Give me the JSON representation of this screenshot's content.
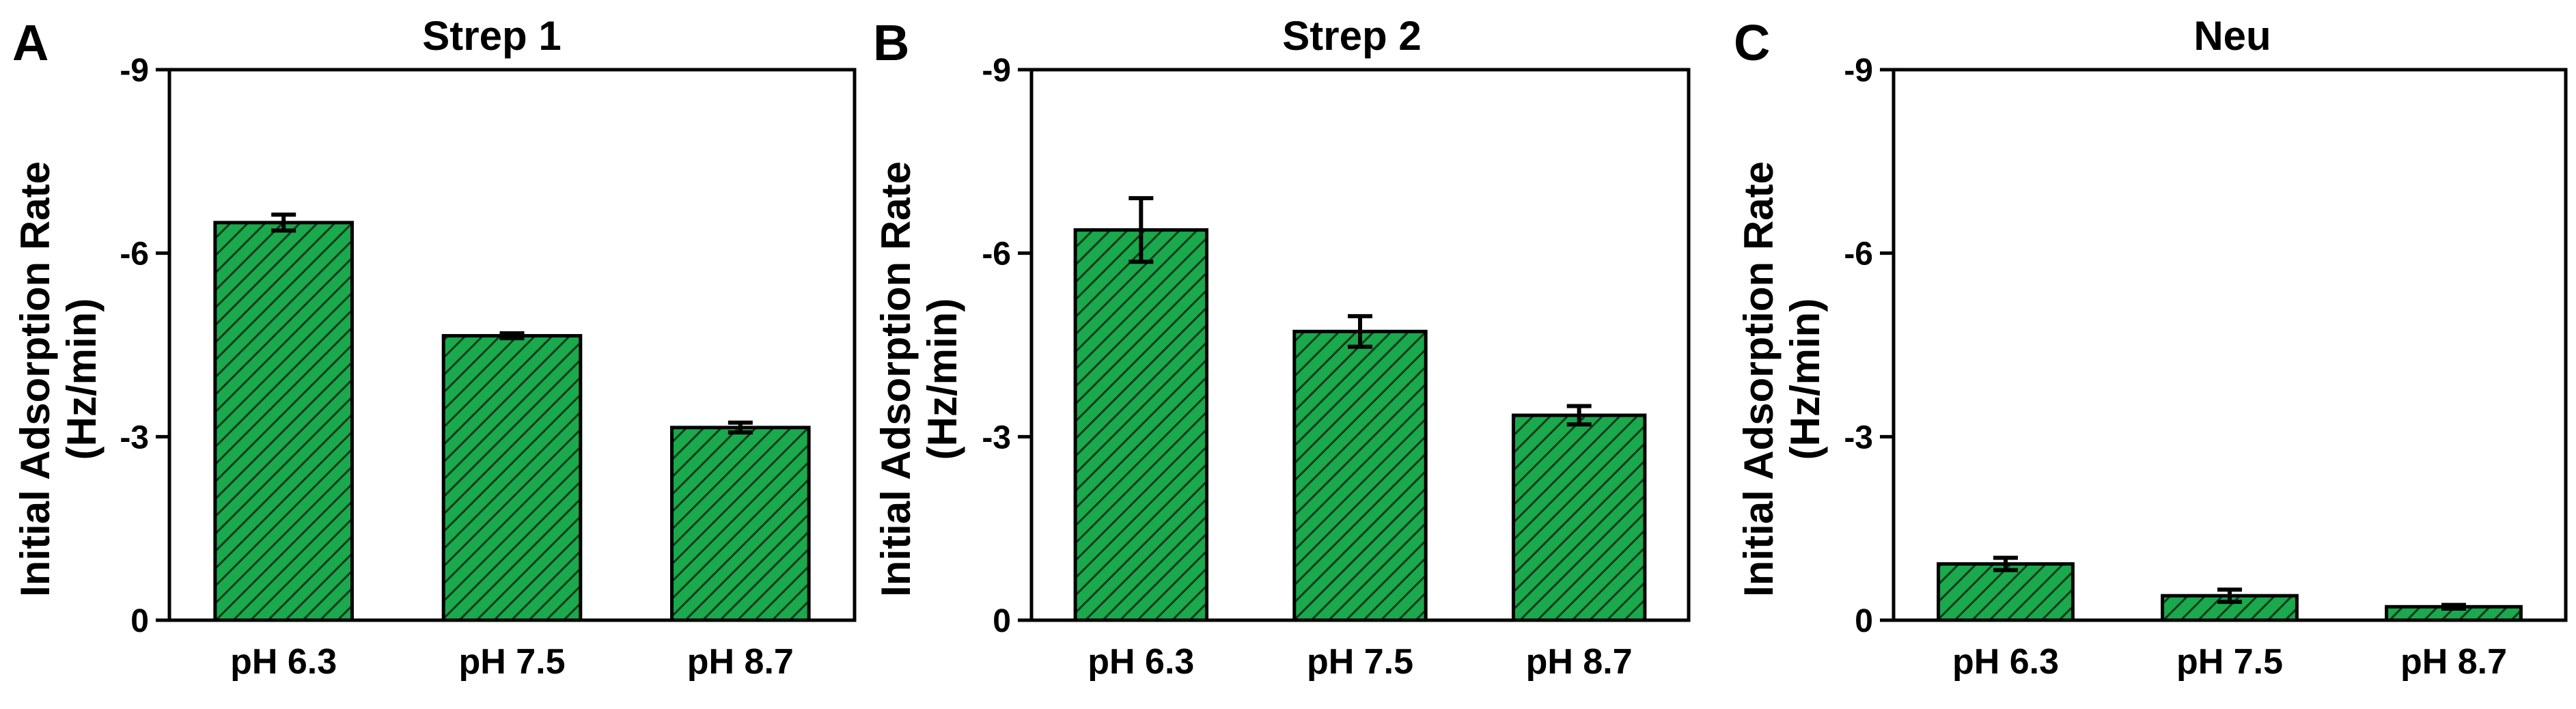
{
  "colors": {
    "bar_fill": "#1aa94c",
    "hatch": "#0d3b1c",
    "axis": "#000000"
  },
  "chart_data": [
    {
      "type": "bar",
      "panel": "A",
      "title": "Strep 1",
      "ylabel_line1": "Initial Adsorption Rate",
      "ylabel_line2": "(Hz/min)",
      "ylim": [
        0,
        -9
      ],
      "yticks": [
        0,
        -3,
        -6,
        -9
      ],
      "ytick_labels": [
        "0",
        "-3",
        "-6",
        "-9"
      ],
      "categories": [
        "pH 6.3",
        "pH 7.5",
        "pH 8.7"
      ],
      "values": [
        -6.5,
        -4.65,
        -3.15
      ],
      "errors": [
        0.13,
        0.04,
        0.08
      ]
    },
    {
      "type": "bar",
      "panel": "B",
      "title": "Strep 2",
      "ylabel_line1": "Initial Adsorption Rate",
      "ylabel_line2": "(Hz/min)",
      "ylim": [
        0,
        -9
      ],
      "yticks": [
        0,
        -3,
        -6,
        -9
      ],
      "ytick_labels": [
        "0",
        "-3",
        "-6",
        "-9"
      ],
      "categories": [
        "pH 6.3",
        "pH 7.5",
        "pH 8.7"
      ],
      "values": [
        -6.38,
        -4.72,
        -3.35
      ],
      "errors": [
        0.52,
        0.25,
        0.15
      ]
    },
    {
      "type": "bar",
      "panel": "C",
      "title": "Neu",
      "ylabel_line1": "Initial Adsorption Rate",
      "ylabel_line2": "(Hz/min)",
      "ylim": [
        0,
        -9
      ],
      "yticks": [
        0,
        -3,
        -6,
        -9
      ],
      "ytick_labels": [
        "0",
        "-3",
        "-6",
        "-9"
      ],
      "categories": [
        "pH 6.3",
        "pH 7.5",
        "pH 8.7"
      ],
      "values": [
        -0.92,
        -0.4,
        -0.22
      ],
      "errors": [
        0.1,
        0.1,
        0.03
      ]
    }
  ]
}
